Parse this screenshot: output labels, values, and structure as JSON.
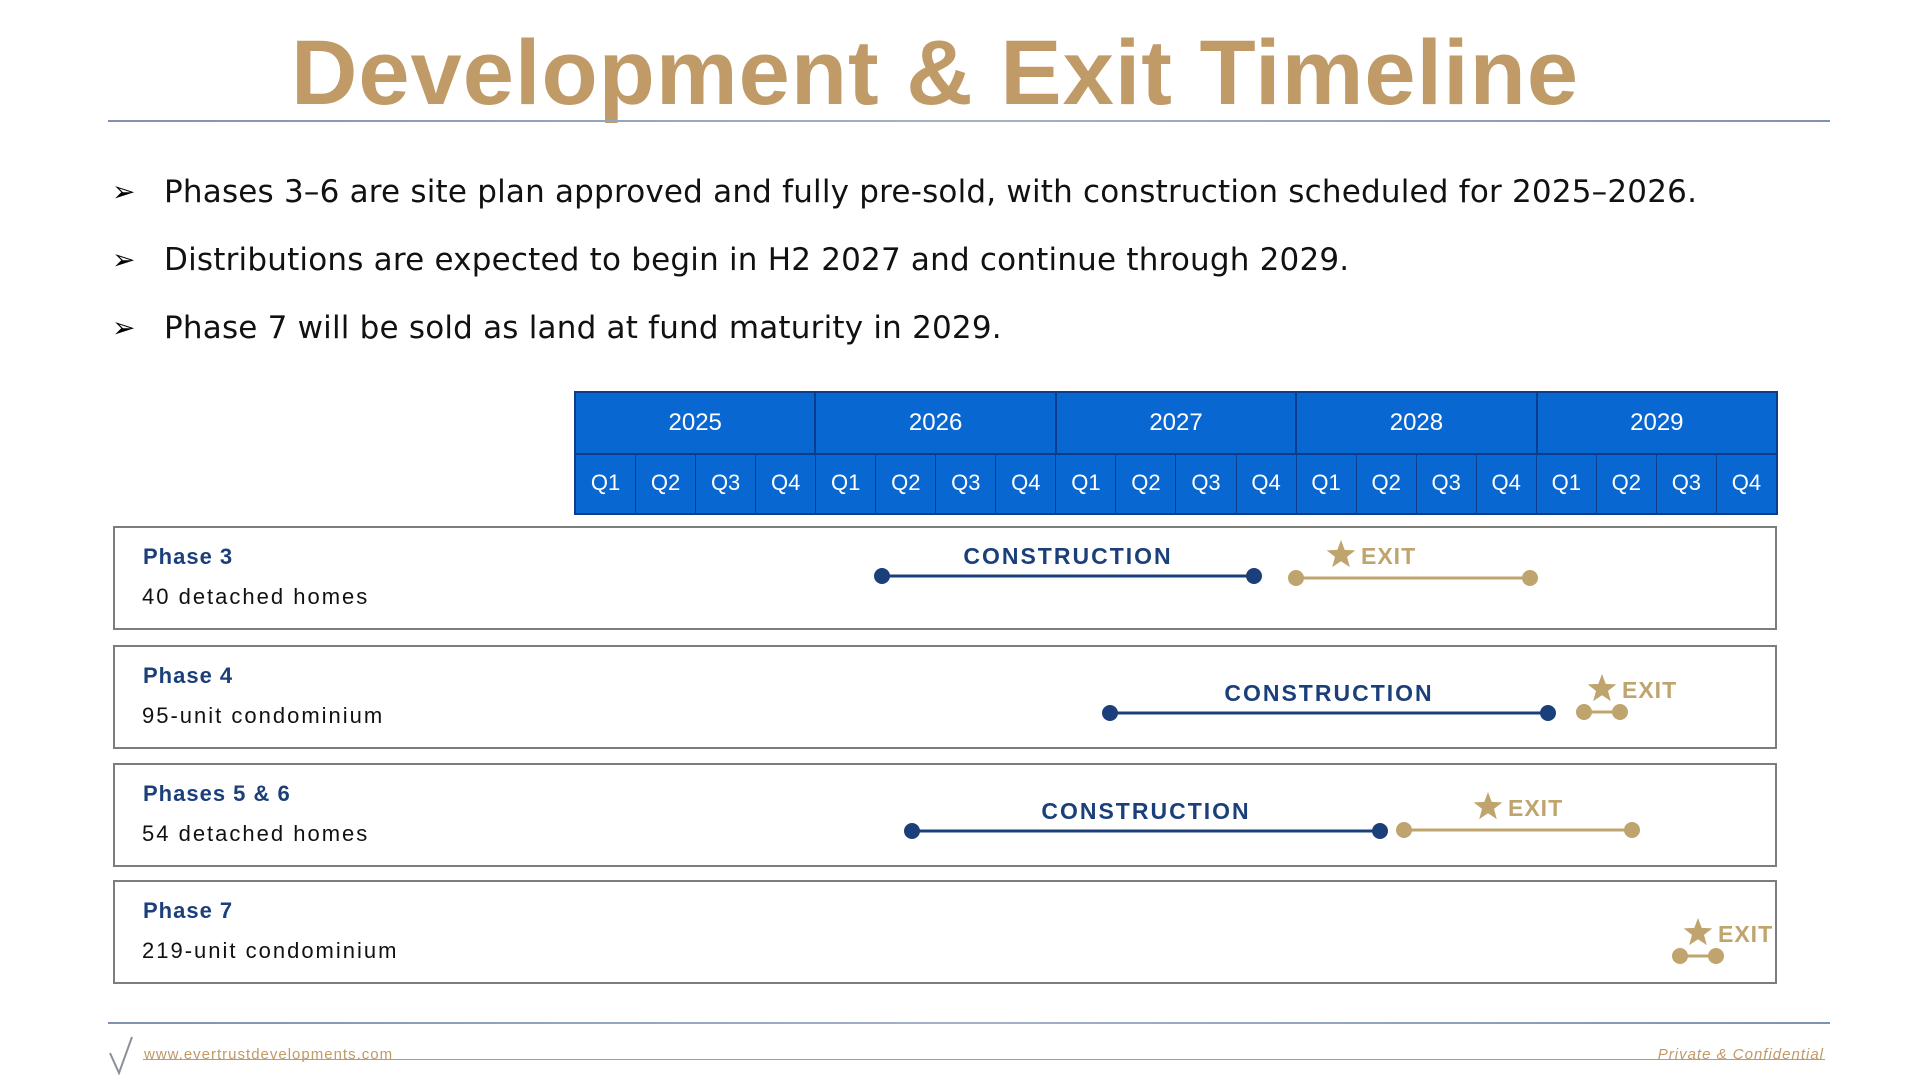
{
  "title": "Development & Exit Timeline",
  "bullets": [
    "Phases 3–6 are site plan approved and fully pre-sold, with construction scheduled for 2025–2026.",
    "Distributions are expected to begin in H2 2027 and continue through 2029.",
    "Phase 7 will be sold as land at fund maturity in 2029."
  ],
  "timeline": {
    "years": [
      "2025",
      "2026",
      "2027",
      "2028",
      "2029"
    ],
    "quarters": [
      "Q1",
      "Q2",
      "Q3",
      "Q4",
      "Q1",
      "Q2",
      "Q3",
      "Q4",
      "Q1",
      "Q2",
      "Q3",
      "Q4",
      "Q1",
      "Q2",
      "Q3",
      "Q4",
      "Q1",
      "Q2",
      "Q3",
      "Q4"
    ]
  },
  "phases": [
    {
      "name": "Phase 3",
      "description": "40 detached homes",
      "construction_label": "CONSTRUCTION",
      "exit_label": "EXIT",
      "construction_range_quarters": [
        5.1,
        11.3
      ],
      "exit_range_quarters": [
        12.0,
        15.9
      ]
    },
    {
      "name": "Phase 4",
      "description": "95-unit condominium",
      "construction_label": "CONSTRUCTION",
      "exit_label": "EXIT",
      "construction_range_quarters": [
        8.9,
        16.2
      ],
      "exit_range_quarters": [
        16.8,
        17.4
      ]
    },
    {
      "name": "Phases 5 & 6",
      "description": "54 detached homes",
      "construction_label": "CONSTRUCTION",
      "exit_label": "EXIT",
      "construction_range_quarters": [
        5.6,
        13.4
      ],
      "exit_range_quarters": [
        13.8,
        17.6
      ]
    },
    {
      "name": "Phase 7",
      "description": "219-unit condominium",
      "construction_label": "",
      "exit_label": "EXIT",
      "construction_range_quarters": null,
      "exit_range_quarters": [
        18.4,
        19.0
      ]
    }
  ],
  "footer": {
    "url": "www.evertrustdevelopments.com",
    "confidential": "Private & Confidential"
  },
  "colors": {
    "gold": "#c09a67",
    "navy": "#1b3f7a",
    "header_blue": "#0967d2",
    "exit_line": "#bfa46e"
  },
  "icons": {
    "bullet": "arrowhead-icon",
    "exit": "star-icon",
    "logo": "checkmark-logo-icon"
  }
}
